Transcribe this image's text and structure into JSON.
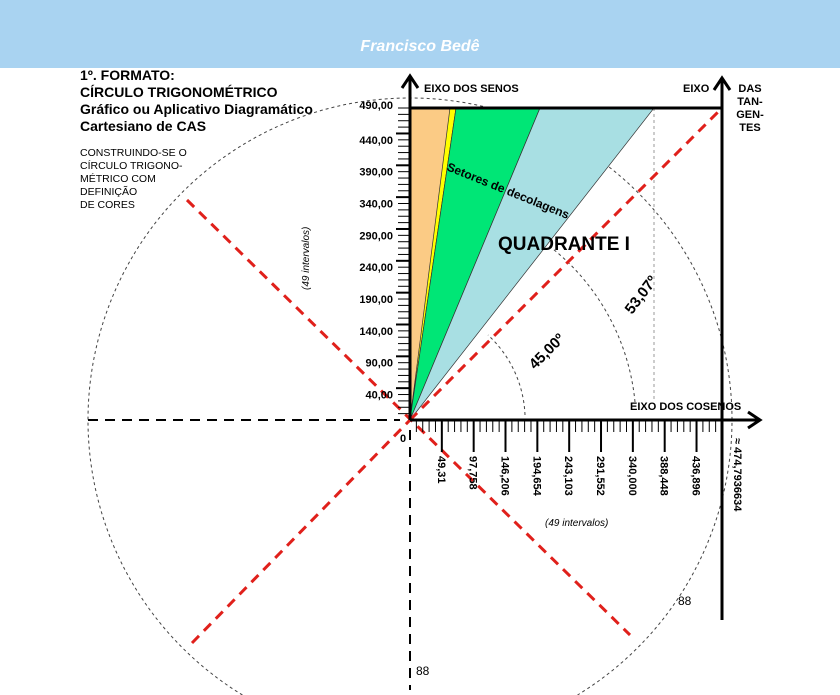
{
  "header": {
    "author": "Francisco Bedê"
  },
  "title": {
    "line1": "1º. FORMATO:",
    "line2": "CÍRCULO TRIGONOMÉTRICO",
    "line3": "Gráfico ou Aplicativo Diagramático",
    "line4": "Cartesiano de CAS"
  },
  "subtitle": {
    "lines": [
      "CONSTRUINDO-SE  O",
      "CÍRCULO TRIGONO-",
      "MÉTRICO COM",
      "DEFINIÇÃO",
      "DE CORES"
    ]
  },
  "axes": {
    "sine": "EIXO DOS SENOS",
    "cosine": "EIXO DOS  COSENOS",
    "tangent_left": "EIXO",
    "tangent_right": [
      "DAS",
      "TAN-",
      "GEN-",
      "TES"
    ],
    "origin": "0",
    "tangent_value": "≈ 474,7936634",
    "y_intervals": "(49 intervalos)",
    "x_intervals": "(49 intervalos)"
  },
  "y_ticks": [
    "40,00",
    "90,00",
    "140,00",
    "190,00",
    "240,00",
    "290,00",
    "340,00",
    "390,00",
    "440,00",
    "490,00"
  ],
  "x_ticks": [
    "49,31",
    "97,758",
    "146,206",
    "194,654",
    "243,103",
    "291,552",
    "340,000",
    "388,448",
    "436,896"
  ],
  "labels": {
    "quadrant": "QUADRANTE   I",
    "sectors": "Setores de decolagens",
    "angle1": "45,00º",
    "angle2": "53,07º",
    "mark1": "88",
    "mark2": "88"
  },
  "colors": {
    "header": "#A9D3F1",
    "orange": "#FBCB85",
    "yellow": "#FFFF00",
    "green": "#00E676",
    "cyan": "#A8DFE3",
    "red": "#E0201B"
  }
}
